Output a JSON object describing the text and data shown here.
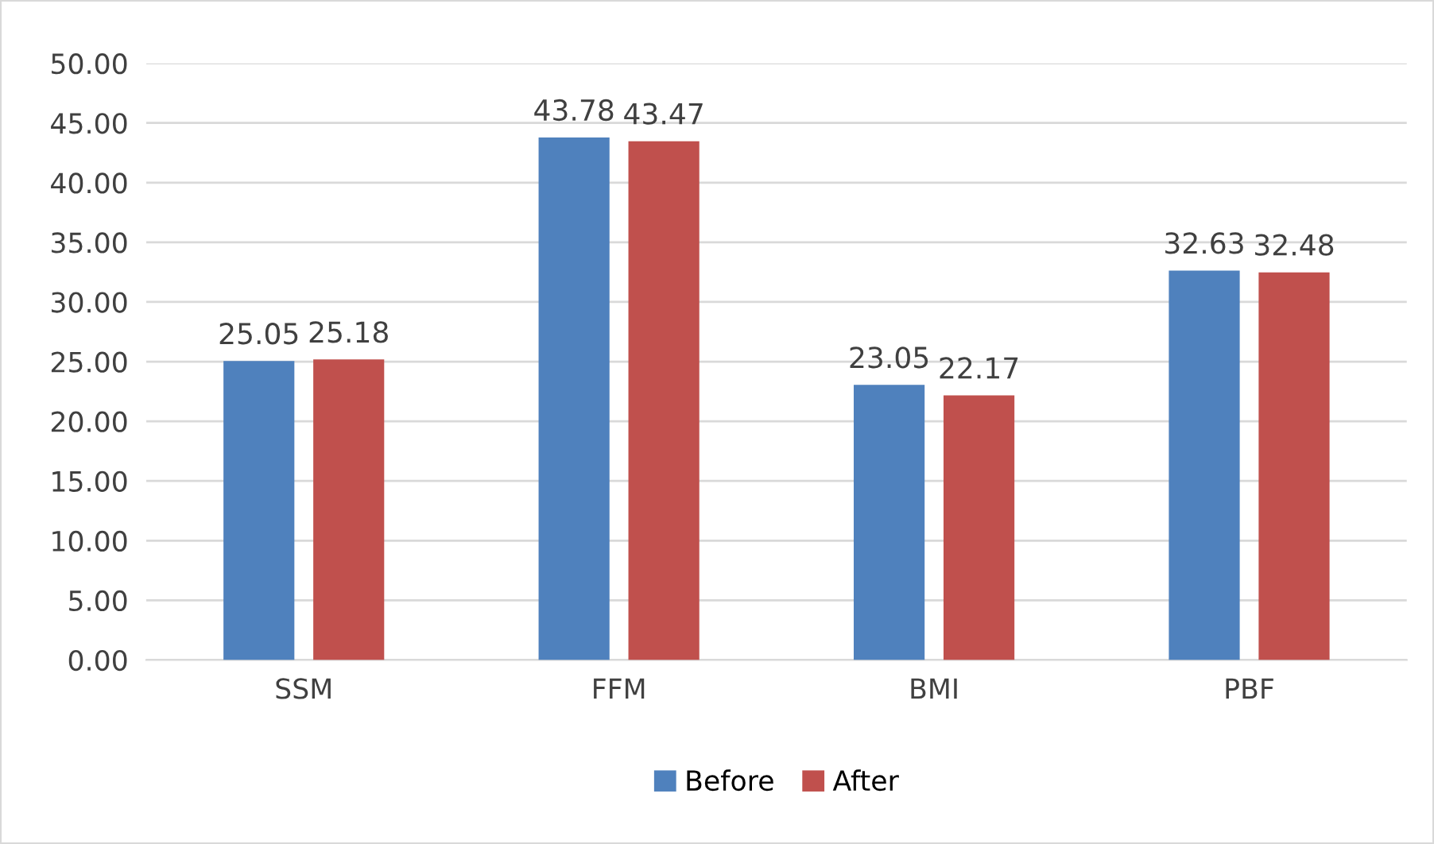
{
  "chart_data": {
    "type": "bar",
    "categories": [
      "SSM",
      "FFM",
      "BMI",
      "PBF"
    ],
    "series": [
      {
        "name": "Before",
        "color": "#4f81bd",
        "values": [
          25.05,
          43.78,
          23.05,
          32.63
        ]
      },
      {
        "name": "After",
        "color": "#c0504d",
        "values": [
          25.18,
          43.47,
          22.17,
          32.48
        ]
      }
    ],
    "ylim": [
      0,
      50
    ],
    "yticks": [
      {
        "value": 0,
        "label": "0.00"
      },
      {
        "value": 5,
        "label": "5.00"
      },
      {
        "value": 10,
        "label": "10.00"
      },
      {
        "value": 15,
        "label": "15.00"
      },
      {
        "value": 20,
        "label": "20.00"
      },
      {
        "value": 25,
        "label": "25.00"
      },
      {
        "value": 30,
        "label": "30.00"
      },
      {
        "value": 35,
        "label": "35.00"
      },
      {
        "value": 40,
        "label": "40.00"
      },
      {
        "value": 45,
        "label": "45.00"
      },
      {
        "value": 50,
        "label": "50.00"
      }
    ],
    "grid": "y",
    "legend": "bottom",
    "data_labels": true
  }
}
